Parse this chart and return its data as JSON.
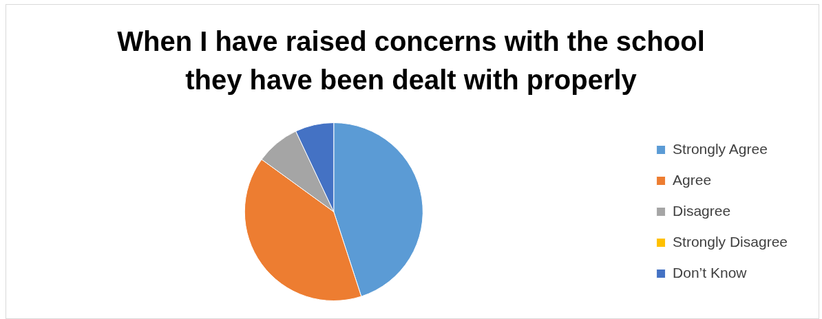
{
  "chart_data": {
    "type": "pie",
    "title": "When I have raised concerns with the school they have been dealt with properly",
    "categories": [
      "Strongly Agree",
      "Agree",
      "Disagree",
      "Strongly Disagree",
      "Don’t Know"
    ],
    "values": [
      45,
      40,
      8,
      0,
      7
    ],
    "colors": [
      "#5b9bd5",
      "#ed7d31",
      "#a5a5a5",
      "#ffc000",
      "#4472c4"
    ],
    "legend": "right"
  }
}
